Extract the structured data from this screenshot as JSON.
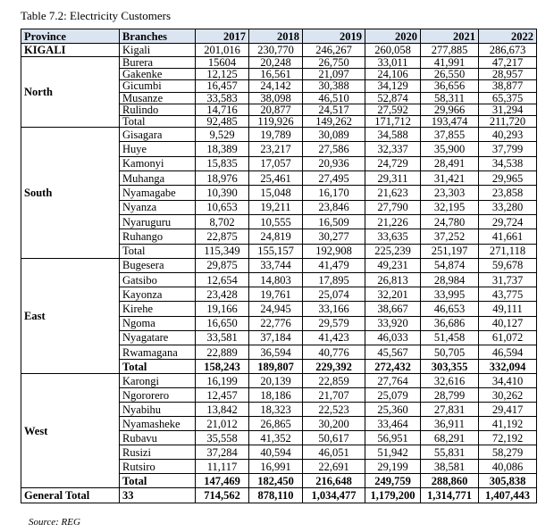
{
  "title": "Table 7.2: Electricity Customers",
  "headers": [
    "Province",
    "Branches",
    "2017",
    "2018",
    "2019",
    "2020",
    "2021",
    "2022"
  ],
  "sections": [
    {
      "province": "KIGALI",
      "rows": [
        {
          "branch": "Kigali",
          "values": [
            "201,016",
            "230,770",
            "246,267",
            "260,058",
            "277,885",
            "286,673"
          ]
        }
      ]
    },
    {
      "province": "North",
      "rows": [
        {
          "branch": "Burera",
          "values": [
            "15604",
            "20,248",
            "26,750",
            "33,011",
            "41,991",
            "47,217"
          ]
        },
        {
          "branch": "Gakenke",
          "values": [
            "12,125",
            "16,561",
            "21,097",
            "24,106",
            "26,550",
            "28,957"
          ]
        },
        {
          "branch": "Gicumbi",
          "values": [
            "16,457",
            "24,142",
            "30,388",
            "34,129",
            "36,656",
            "38,877"
          ]
        },
        {
          "branch": "Musanze",
          "values": [
            "33,583",
            "38,098",
            "46,510",
            "52,874",
            "58,311",
            "65,375"
          ]
        },
        {
          "branch": "Rulindo",
          "values": [
            "14,716",
            "20,877",
            "24,517",
            "27,592",
            "29,966",
            "31,294"
          ]
        },
        {
          "branch": "Total",
          "values": [
            "92,485",
            "119,926",
            "149,262",
            "171,712",
            "193,474",
            "211,720"
          ]
        }
      ]
    },
    {
      "province": "South",
      "rows": [
        {
          "branch": "Gisagara",
          "values": [
            "9,529",
            "19,789",
            "30,089",
            "34,588",
            "37,855",
            "40,293"
          ]
        },
        {
          "branch": "Huye",
          "values": [
            "18,389",
            "23,217",
            "27,586",
            "32,337",
            "35,900",
            "37,799"
          ]
        },
        {
          "branch": "Kamonyi",
          "values": [
            "15,835",
            "17,057",
            "20,936",
            "24,729",
            "28,491",
            "34,538"
          ]
        },
        {
          "branch": "Muhanga",
          "values": [
            "18,976",
            "25,461",
            "27,495",
            "29,311",
            "31,421",
            "29,965"
          ]
        },
        {
          "branch": "Nyamagabe",
          "values": [
            "10,390",
            "15,048",
            "16,170",
            "21,623",
            "23,303",
            "23,858"
          ]
        },
        {
          "branch": "Nyanza",
          "values": [
            "10,653",
            "19,211",
            "23,846",
            "27,790",
            "32,195",
            "33,280"
          ]
        },
        {
          "branch": "Nyaruguru",
          "values": [
            "8,702",
            "10,555",
            "16,509",
            "21,226",
            "24,780",
            "29,724"
          ]
        },
        {
          "branch": "Ruhango",
          "values": [
            "22,875",
            "24,819",
            "30,277",
            "33,635",
            "37,252",
            "41,661"
          ]
        },
        {
          "branch": "Total",
          "values": [
            "115,349",
            "155,157",
            "192,908",
            "225,239",
            "251,197",
            "271,118"
          ]
        }
      ]
    },
    {
      "province": "East",
      "bold_total": true,
      "rows": [
        {
          "branch": "Bugesera",
          "values": [
            "29,875",
            "33,744",
            "41,479",
            "49,231",
            "54,874",
            "59,678"
          ]
        },
        {
          "branch": "Gatsibo",
          "values": [
            "12,654",
            "14,803",
            "17,895",
            "26,813",
            "28,984",
            "31,737"
          ]
        },
        {
          "branch": "Kayonza",
          "values": [
            "23,428",
            "19,761",
            "25,074",
            "32,201",
            "33,995",
            "43,775"
          ]
        },
        {
          "branch": "Kirehe",
          "values": [
            "19,166",
            "24,945",
            "33,166",
            "38,667",
            "46,653",
            "49,111"
          ]
        },
        {
          "branch": "Ngoma",
          "values": [
            "16,650",
            "22,776",
            "29,579",
            "33,920",
            "36,686",
            "40,127"
          ]
        },
        {
          "branch": "Nyagatare",
          "values": [
            "33,581",
            "37,184",
            "41,423",
            "46,033",
            "51,458",
            "61,072"
          ]
        },
        {
          "branch": "Rwamagana",
          "values": [
            "22,889",
            "36,594",
            "40,776",
            "45,567",
            "50,705",
            "46,594"
          ]
        },
        {
          "branch": "Total",
          "values": [
            "158,243",
            "189,807",
            "229,392",
            "272,432",
            "303,355",
            "332,094"
          ]
        }
      ]
    },
    {
      "province": "West",
      "bold_total": true,
      "rows": [
        {
          "branch": "Karongi",
          "values": [
            "16,199",
            "20,139",
            "22,859",
            "27,764",
            "32,616",
            "34,410"
          ]
        },
        {
          "branch": "Ngororero",
          "values": [
            "12,457",
            "18,186",
            "21,707",
            "25,079",
            "28,799",
            "30,262"
          ]
        },
        {
          "branch": "Nyabihu",
          "values": [
            "13,842",
            "18,323",
            "22,523",
            "25,360",
            "27,831",
            "29,417"
          ]
        },
        {
          "branch": "Nyamasheke",
          "values": [
            "21,012",
            "26,865",
            "30,200",
            "33,464",
            "36,911",
            "41,192"
          ]
        },
        {
          "branch": "Rubavu",
          "values": [
            "35,558",
            "41,352",
            "50,617",
            "56,951",
            "68,291",
            "72,192"
          ]
        },
        {
          "branch": "Rusizi",
          "values": [
            "37,284",
            "40,594",
            "46,051",
            "51,942",
            "55,831",
            "58,279"
          ]
        },
        {
          "branch": "Rutsiro",
          "values": [
            "11,117",
            "16,991",
            "22,691",
            "29,199",
            "38,581",
            "40,086"
          ]
        },
        {
          "branch": "Total",
          "values": [
            "147,469",
            "182,450",
            "216,648",
            "249,759",
            "288,860",
            "305,838"
          ]
        }
      ]
    }
  ],
  "general_total": {
    "label": "General Total",
    "branches": "33",
    "values": [
      "714,562",
      "878,110",
      "1,034,477",
      "1,179,200",
      "1,314,771",
      "1,407,443"
    ]
  },
  "source": "Source: REG"
}
